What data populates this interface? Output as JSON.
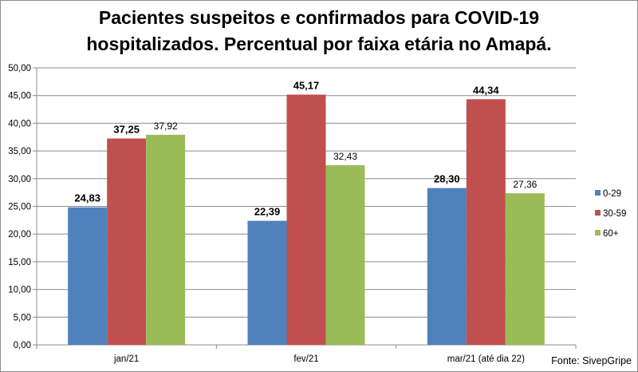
{
  "chart_data": {
    "type": "bar",
    "title_lines": [
      "Pacientes suspeitos e confirmados para COVID-19",
      "hospitalizados.  Percentual por faixa etária no Amapá."
    ],
    "categories": [
      "jan/21",
      "fev/21",
      "mar/21 (até dia 22)"
    ],
    "series": [
      {
        "name": "0-29",
        "color": "#4f81bd",
        "values": [
          24.83,
          22.39,
          28.3
        ],
        "labels": [
          "24,83",
          "22,39",
          "28,30"
        ],
        "label_bold": true
      },
      {
        "name": "30-59",
        "color": "#c0504d",
        "values": [
          37.25,
          45.17,
          44.34
        ],
        "labels": [
          "37,25",
          "45,17",
          "44,34"
        ],
        "label_bold": true
      },
      {
        "name": "60+",
        "color": "#9bbb59",
        "values": [
          37.92,
          32.43,
          27.36
        ],
        "labels": [
          "37,92",
          "32,43",
          "27,36"
        ],
        "label_bold": false
      }
    ],
    "y_ticks": [
      "0,00",
      "5,00",
      "10,00",
      "15,00",
      "20,00",
      "25,00",
      "30,00",
      "35,00",
      "40,00",
      "45,00",
      "50,00"
    ],
    "ylim": [
      0,
      50
    ],
    "ytick_step": 5,
    "grid": true,
    "legend_position": "right",
    "source": "Fonte: SivepGripe"
  }
}
